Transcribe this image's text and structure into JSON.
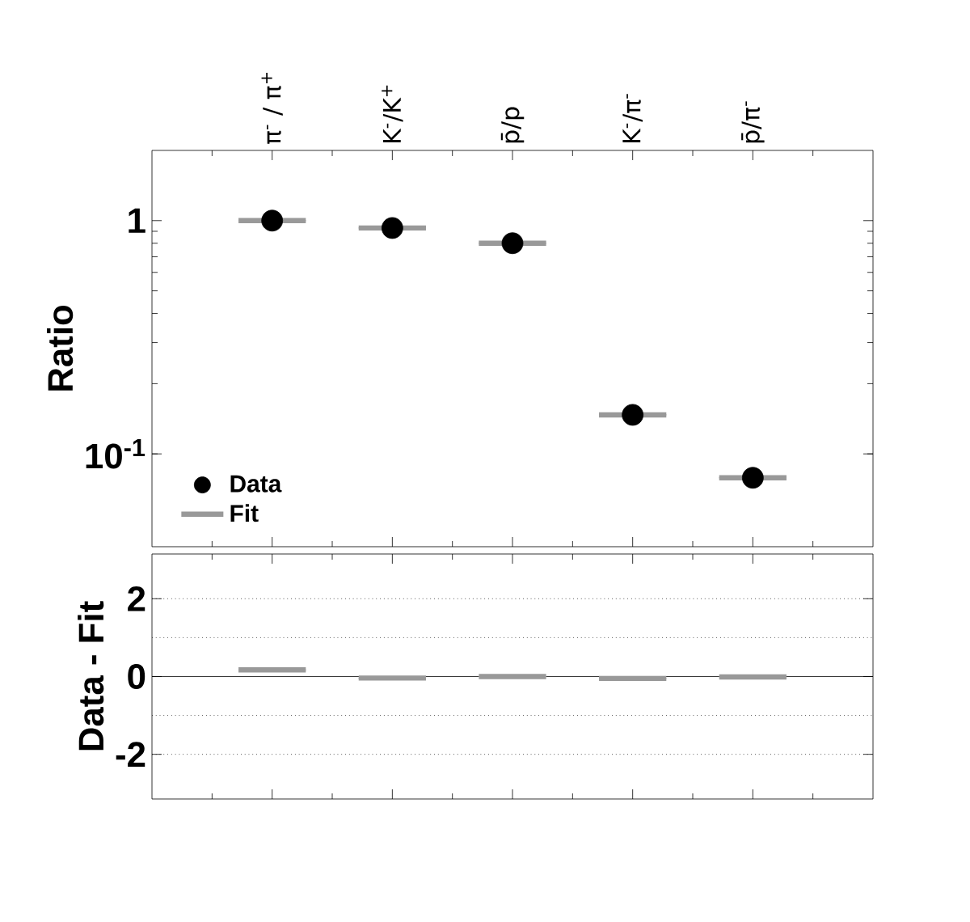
{
  "chart_data": [
    {
      "type": "scatter",
      "categories": [
        "π$^{-}$ / π$^{+}$",
        "K$^{-}$/K$^{+}$",
        "p̄/p",
        "K$^{-}$/π$^{-}$",
        "p̄/π$^{-}$"
      ],
      "ylabel": "Ratio",
      "log": "y",
      "ylim": [
        0.04,
        2
      ],
      "yticks": [
        {
          "value": 0.1,
          "label": "10$^{-1}$"
        },
        1
      ],
      "legend": "bottom left",
      "series": [
        {
          "name": "Fit",
          "type": "box",
          "color": "#999999",
          "boxes": [
            {
              "low": 1.0,
              "q1": 1.0,
              "median": 1.0,
              "q3": 1.0,
              "high": 1.0
            },
            {
              "low": 0.93,
              "q1": 0.93,
              "median": 0.93,
              "q3": 0.93,
              "high": 0.93
            },
            {
              "low": 0.8,
              "q1": 0.8,
              "median": 0.8,
              "q3": 0.8,
              "high": 0.8
            },
            {
              "low": 0.147,
              "q1": 0.147,
              "median": 0.147,
              "q3": 0.147,
              "high": 0.147
            },
            {
              "low": 0.079,
              "q1": 0.079,
              "median": 0.079,
              "q3": 0.079,
              "high": 0.079
            }
          ]
        },
        {
          "name": "Data",
          "color": "#000000",
          "marker": "circle",
          "values": [
            1.0,
            0.93,
            0.8,
            0.147,
            0.079
          ]
        }
      ]
    },
    {
      "type": "scatter",
      "categories": [
        null,
        null,
        null,
        null,
        null
      ],
      "tick_labels": "y",
      "ylabel": "Data - Fit",
      "ylim": [
        -3.15,
        3.15
      ],
      "yticks": [
        -2,
        0,
        2
      ],
      "ref_lines": [
        {
          "axis": "y",
          "value": 0,
          "color": "#000000",
          "line_style": "solid"
        },
        {
          "axis": "y",
          "value": 1,
          "color": "#000000",
          "line_style": "dotted"
        },
        {
          "axis": "y",
          "value": 2,
          "color": "#000000",
          "line_style": "dotted"
        },
        {
          "axis": "y",
          "value": -1,
          "color": "#000000",
          "line_style": "dotted"
        },
        {
          "axis": "y",
          "value": -2,
          "color": "#000000",
          "line_style": "dotted"
        }
      ],
      "series": [
        {
          "type": "box",
          "color": "#999999",
          "boxes": [
            {
              "low": 0.17,
              "q1": 0.17,
              "median": 0.17,
              "q3": 0.17,
              "high": 0.17
            },
            {
              "low": -0.04,
              "q1": -0.04,
              "median": -0.04,
              "q3": -0.04,
              "high": -0.04
            },
            {
              "low": 0.0,
              "q1": 0.0,
              "median": 0.0,
              "q3": 0.0,
              "high": 0.0
            },
            {
              "low": -0.05,
              "q1": -0.05,
              "median": -0.05,
              "q3": -0.05,
              "high": -0.05
            },
            {
              "low": -0.01,
              "q1": -0.01,
              "median": -0.01,
              "q3": -0.01,
              "high": -0.01
            }
          ]
        }
      ]
    }
  ]
}
